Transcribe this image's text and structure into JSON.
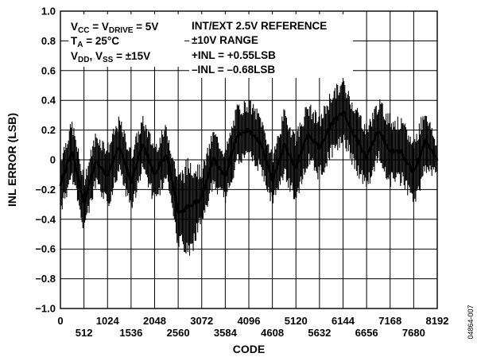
{
  "chart_data": {
    "type": "line",
    "xlabel": "CODE",
    "ylabel": "INL ERROR (LSB)",
    "xlim": [
      0,
      8192
    ],
    "ylim": [
      -1.0,
      1.0
    ],
    "grid": true,
    "x_ticks_top_row": [
      "0",
      "1024",
      "2048",
      "3072",
      "4096",
      "5120",
      "6144",
      "7168",
      "8192"
    ],
    "x_ticks_bottom_row": [
      "512",
      "1536",
      "2560",
      "3584",
      "4608",
      "5632",
      "6656",
      "7680"
    ],
    "y_ticks": [
      "1.0",
      "0.8",
      "0.6",
      "0.4",
      "0.2",
      "0",
      "−0.2",
      "−0.4",
      "−0.6",
      "−0.8",
      "−1.0"
    ],
    "annotations": {
      "left": {
        "line1": {
          "base": "V",
          "sub": "CC",
          "mid": " = V",
          "sub2": "DRIVE",
          "tail": " = 5V"
        },
        "line2": {
          "base": "T",
          "sub": "A",
          "tail": " = 25°C"
        },
        "line3": {
          "base": "V",
          "sub": "DD",
          "mid": ", V",
          "sub2": "SS",
          "tail": " = ±15V"
        }
      },
      "right": [
        "INT/EXT 2.5V REFERENCE",
        "±10V RANGE",
        "+INL = +0.55LSB",
        "–INL = –0.68LSB"
      ]
    },
    "series": [
      {
        "envelope": {
          "x": [
            0,
            256,
            512,
            768,
            1024,
            1280,
            1536,
            1792,
            2048,
            2304,
            2560,
            2816,
            3072,
            3328,
            3584,
            3840,
            4096,
            4352,
            4608,
            4864,
            5120,
            5376,
            5632,
            5888,
            6144,
            6400,
            6656,
            6912,
            7168,
            7424,
            7680,
            7936,
            8192
          ],
          "max": [
            0.05,
            0.28,
            -0.1,
            0.2,
            0.12,
            0.3,
            0.08,
            0.3,
            0.12,
            0.25,
            -0.08,
            0.05,
            -0.05,
            0.22,
            0.08,
            0.38,
            0.42,
            0.32,
            0.05,
            0.35,
            0.2,
            0.4,
            0.3,
            0.48,
            0.55,
            0.4,
            0.25,
            0.42,
            0.32,
            0.28,
            0.15,
            0.38,
            0.1
          ],
          "min": [
            -0.38,
            -0.15,
            -0.5,
            -0.2,
            -0.35,
            -0.1,
            -0.38,
            -0.08,
            -0.32,
            -0.15,
            -0.62,
            -0.68,
            -0.45,
            -0.2,
            -0.3,
            -0.05,
            -0.02,
            -0.1,
            -0.32,
            -0.15,
            -0.3,
            -0.05,
            -0.15,
            0.0,
            0.1,
            -0.08,
            -0.22,
            -0.02,
            -0.2,
            -0.18,
            -0.32,
            -0.12,
            -0.1
          ]
        },
        "inl_max": 0.55,
        "inl_min": -0.68
      }
    ]
  },
  "figure_id": "04864-007"
}
